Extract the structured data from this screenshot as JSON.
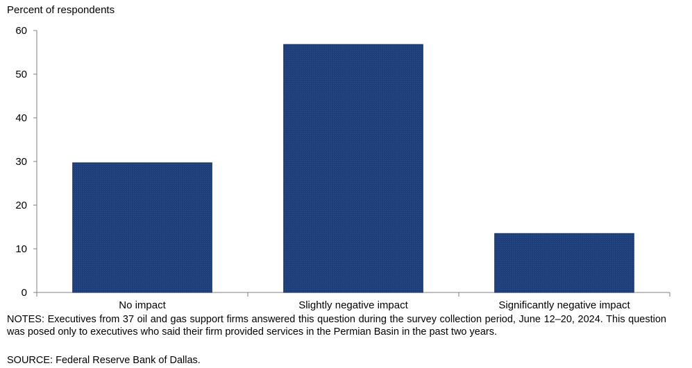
{
  "chart_data": {
    "type": "bar",
    "ylabel": "Percent of respondents",
    "categories": [
      "No impact",
      "Slightly negative impact",
      "Significantly negative impact"
    ],
    "values": [
      29.7,
      56.8,
      13.5
    ],
    "ylim": [
      0,
      60
    ],
    "yticks": [
      0,
      10,
      20,
      30,
      40,
      50,
      60
    ],
    "grid": false,
    "bar_color": "#1f3f7a"
  },
  "notes": "NOTES: Executives from 37 oil and gas support firms answered this question during the survey collection period, June 12–20, 2024. This question was posed only to executives who said their firm provided services in the Permian Basin in the past two years.",
  "source": "SOURCE: Federal Reserve Bank of Dallas."
}
